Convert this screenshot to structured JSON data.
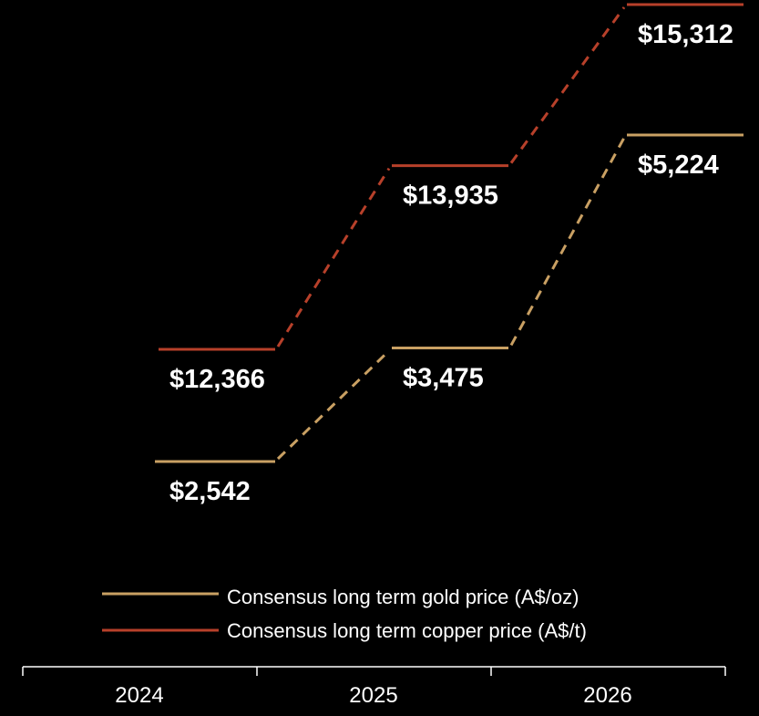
{
  "chart_data": {
    "type": "line",
    "categories": [
      "2024",
      "2025",
      "2026"
    ],
    "series": [
      {
        "name": "Consensus long term gold price (A$/oz)",
        "color": "#C9A063",
        "values": [
          2542,
          3475,
          5224
        ],
        "labels": [
          "$2,542",
          "$3,475",
          "$5,224"
        ]
      },
      {
        "name": "Consensus long term copper price (A$/t)",
        "color": "#B7402A",
        "values": [
          12366,
          13935,
          15312
        ],
        "labels": [
          "$12,366",
          "$13,935",
          "$15,312"
        ]
      }
    ],
    "style": "step segments per year joined by dashed connectors",
    "legend_position": "bottom",
    "grid": false,
    "background": "#000000"
  }
}
